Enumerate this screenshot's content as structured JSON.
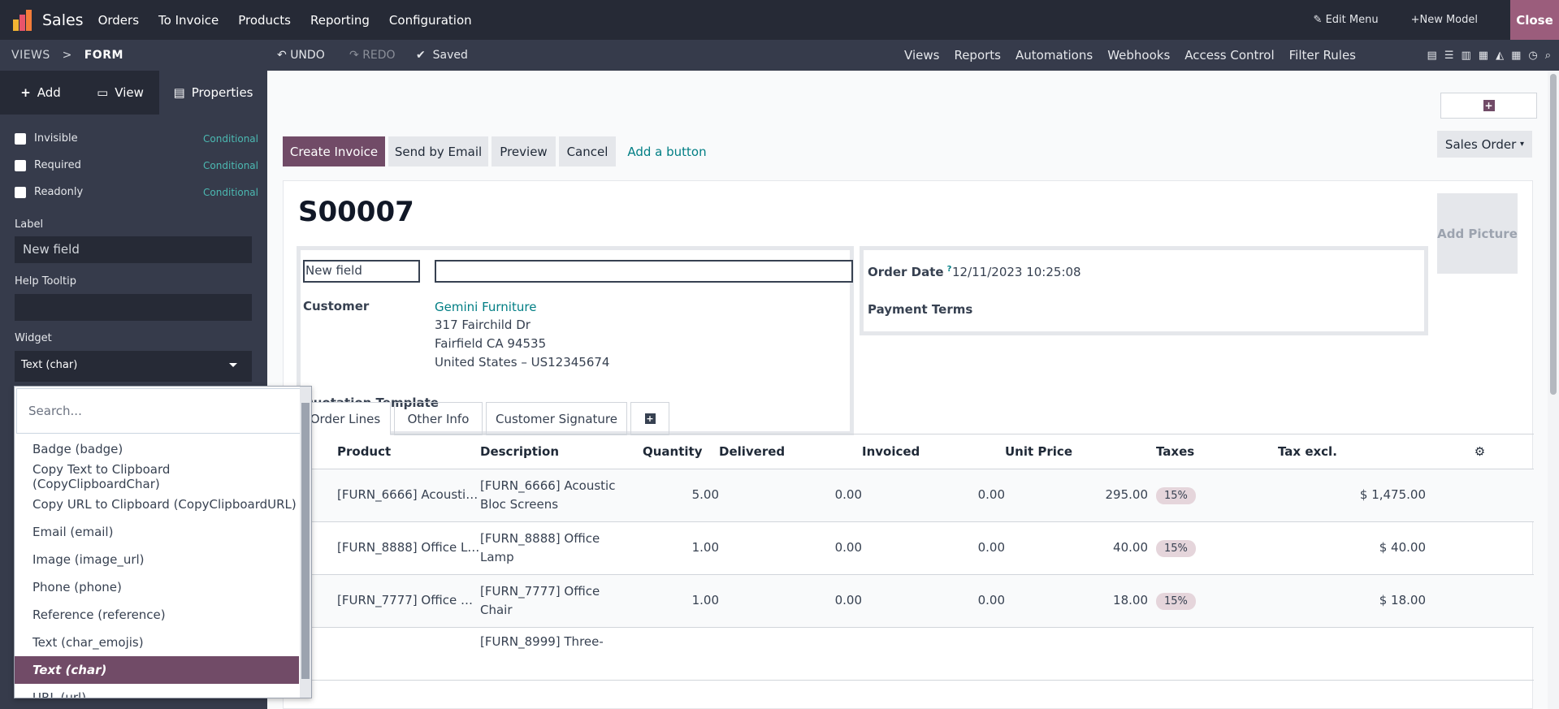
{
  "app": {
    "name": "Sales"
  },
  "topnav": {
    "menus": [
      "Orders",
      "To Invoice",
      "Products",
      "Reporting",
      "Configuration"
    ],
    "edit_menu": "Edit Menu",
    "new_model": "New Model",
    "close": "Close"
  },
  "subbar": {
    "crumb_views": "VIEWS",
    "crumb_sep": ">",
    "crumb_form": "FORM",
    "undo": "UNDO",
    "redo": "REDO",
    "saved": "Saved",
    "links": [
      "Views",
      "Reports",
      "Automations",
      "Webhooks",
      "Access Control",
      "Filter Rules"
    ]
  },
  "sidebar": {
    "tabs": [
      {
        "label": "Add",
        "icon": "plus-icon"
      },
      {
        "label": "View",
        "icon": "monitor-icon"
      },
      {
        "label": "Properties",
        "icon": "properties-icon"
      }
    ],
    "checks": [
      {
        "label": "Invisible",
        "cond": "Conditional"
      },
      {
        "label": "Required",
        "cond": "Conditional"
      },
      {
        "label": "Readonly",
        "cond": "Conditional"
      }
    ],
    "label_caption": "Label",
    "label_value": "New field",
    "tooltip_caption": "Help Tooltip",
    "widget_caption": "Widget",
    "widget_value": "Text (char)"
  },
  "dropdown": {
    "placeholder": "Search...",
    "items": [
      "Badge (badge)",
      "Copy Text to Clipboard (CopyClipboardChar)",
      "Copy URL to Clipboard (CopyClipboardURL)",
      "Email (email)",
      "Image (image_url)",
      "Phone (phone)",
      "Reference (reference)",
      "Text (char_emojis)",
      "Text (char)",
      "URL (url)"
    ],
    "selected": "Text (char)"
  },
  "form": {
    "buttons": [
      "Create Invoice",
      "Send by Email",
      "Preview",
      "Cancel"
    ],
    "add_button": "Add a button",
    "smart": "Sales Order",
    "title": "S00007",
    "add_picture": "Add Picture",
    "new_field_label": "New field",
    "customer_label": "Customer",
    "customer_name": "Gemini Furniture",
    "address": [
      "317 Fairchild Dr",
      "Fairfield CA 94535",
      "United States – US12345674"
    ],
    "quotation_template": "Quotation Template",
    "order_date_label": "Order Date",
    "order_date_help": "?",
    "order_date": "12/11/2023 10:25:08",
    "payment_terms": "Payment Terms",
    "tabs": [
      "Order Lines",
      "Other Info",
      "Customer Signature"
    ]
  },
  "lines": {
    "headers": [
      "Product",
      "Description",
      "Quantity",
      "Delivered",
      "Invoiced",
      "Unit Price",
      "Taxes",
      "Tax excl."
    ],
    "rows": [
      {
        "product": "[FURN_6666] Acousti…",
        "desc1": "[FURN_6666] Acoustic",
        "desc2": "Bloc Screens",
        "qty": "5.00",
        "delivered": "0.00",
        "invoiced": "0.00",
        "price": "295.00",
        "tax": "15%",
        "total": "$ 1,475.00"
      },
      {
        "product": "[FURN_8888] Office L…",
        "desc1": "[FURN_8888] Office",
        "desc2": "Lamp",
        "qty": "1.00",
        "delivered": "0.00",
        "invoiced": "0.00",
        "price": "40.00",
        "tax": "15%",
        "total": "$ 40.00"
      },
      {
        "product": "[FURN_7777] Office …",
        "desc1": "[FURN_7777] Office",
        "desc2": "Chair",
        "qty": "1.00",
        "delivered": "0.00",
        "invoiced": "0.00",
        "price": "18.00",
        "tax": "15%",
        "total": "$ 18.00"
      },
      {
        "product": "",
        "desc1": "[FURN_8999] Three-",
        "desc2": "",
        "qty": "",
        "delivered": "",
        "invoiced": "",
        "price": "",
        "tax": "",
        "total": ""
      }
    ]
  },
  "colors": {
    "brand": "#714b67",
    "link": "#017e84",
    "topbar": "#262a36"
  }
}
